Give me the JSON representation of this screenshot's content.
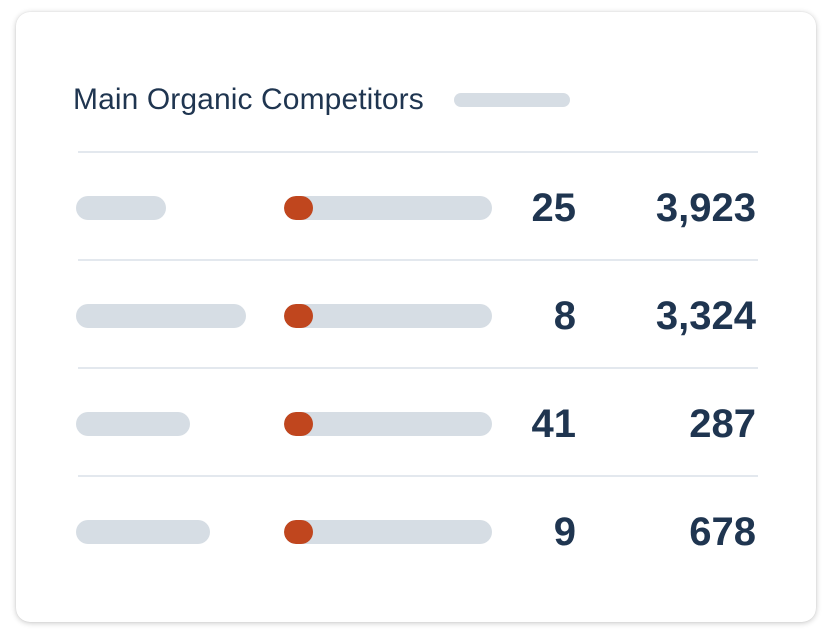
{
  "card": {
    "title": "Main Organic Competitors"
  },
  "colors": {
    "title_text": "#1f3550",
    "placeholder_bar": "#d6dde4",
    "level_fill": "#c0461e",
    "divider": "#e3e8ee"
  },
  "competitors": [
    {
      "competition_level": 0.14,
      "common_keywords": "25",
      "organic_keywords": "3,923"
    },
    {
      "competition_level": 0.14,
      "common_keywords": "8",
      "organic_keywords": "3,324"
    },
    {
      "competition_level": 0.14,
      "common_keywords": "41",
      "organic_keywords": "287"
    },
    {
      "competition_level": 0.14,
      "common_keywords": "9",
      "organic_keywords": "678"
    }
  ]
}
